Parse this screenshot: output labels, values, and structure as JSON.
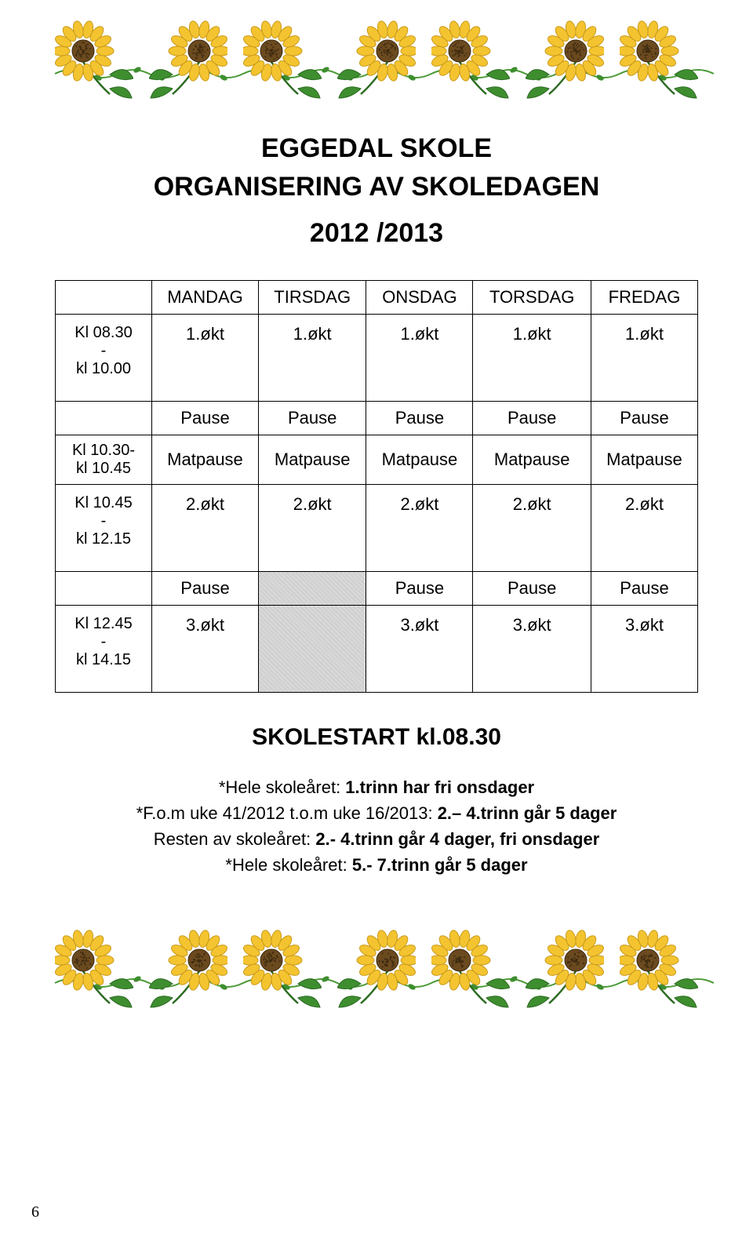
{
  "page": {
    "title": "EGGEDAL SKOLE",
    "subtitle": "ORGANISERING AV SKOLEDAGEN",
    "year": "2012 /2013",
    "starttime": "SKOLESTART kl.08.30",
    "pagenum": "6"
  },
  "colors": {
    "petal": "#f4c430",
    "petal_dark": "#c99a1a",
    "center": "#6b4a1f",
    "center_dots": "#3d2a10",
    "leaf": "#3e8e2f",
    "leaf_dark": "#2c6b22",
    "vine": "#4a9a35",
    "shaded_bg": "#d9d9d9",
    "border": "#000000",
    "bg": "#ffffff"
  },
  "schedule": {
    "headers": [
      "MANDAG",
      "TIRSDAG",
      "ONSDAG",
      "TORSDAG",
      "FREDAG"
    ],
    "rows": [
      {
        "time": "Kl 08.30\n-\nkl 10.00",
        "cells": [
          "1.økt",
          "1.økt",
          "1.økt",
          "1.økt",
          "1.økt"
        ],
        "tall": true
      },
      {
        "time": "",
        "cells": [
          "Pause",
          "Pause",
          "Pause",
          "Pause",
          "Pause"
        ]
      },
      {
        "time": "Kl 10.30-\nkl 10.45",
        "cells": [
          "Matpause",
          "Matpause",
          "Matpause",
          "Matpause",
          "Matpause"
        ]
      },
      {
        "time": "Kl 10.45\n-\nkl 12.15",
        "cells": [
          "2.økt",
          "2.økt",
          "2.økt",
          "2.økt",
          "2.økt"
        ],
        "tall": true
      },
      {
        "time": "",
        "cells": [
          "Pause",
          "",
          "Pause",
          "Pause",
          "Pause"
        ],
        "shaded_idx": [
          1
        ]
      },
      {
        "time": "Kl 12.45\n-\nkl 14.15",
        "cells": [
          "3.økt",
          "",
          "3.økt",
          "3.økt",
          "3.økt"
        ],
        "tall": true,
        "shaded_idx": [
          1
        ]
      }
    ]
  },
  "notes": {
    "line1_a": "*Hele skoleåret: ",
    "line1_b": "1.trinn har fri onsdager",
    "line2_a": "*F.o.m uke 41/2012 t.o.m uke 16/2013: ",
    "line2_b": "2.– 4.trinn går 5 dager",
    "line3_a": "Resten av skoleåret: ",
    "line3_b": "2.- 4.trinn går 4 dager, fri onsdager",
    "line4_a": "*Hele skoleåret: ",
    "line4_b": "5.- 7.trinn går 5 dager"
  },
  "flowers": {
    "count": 7,
    "variants": [
      0,
      1,
      0,
      1,
      0,
      1,
      0
    ]
  }
}
